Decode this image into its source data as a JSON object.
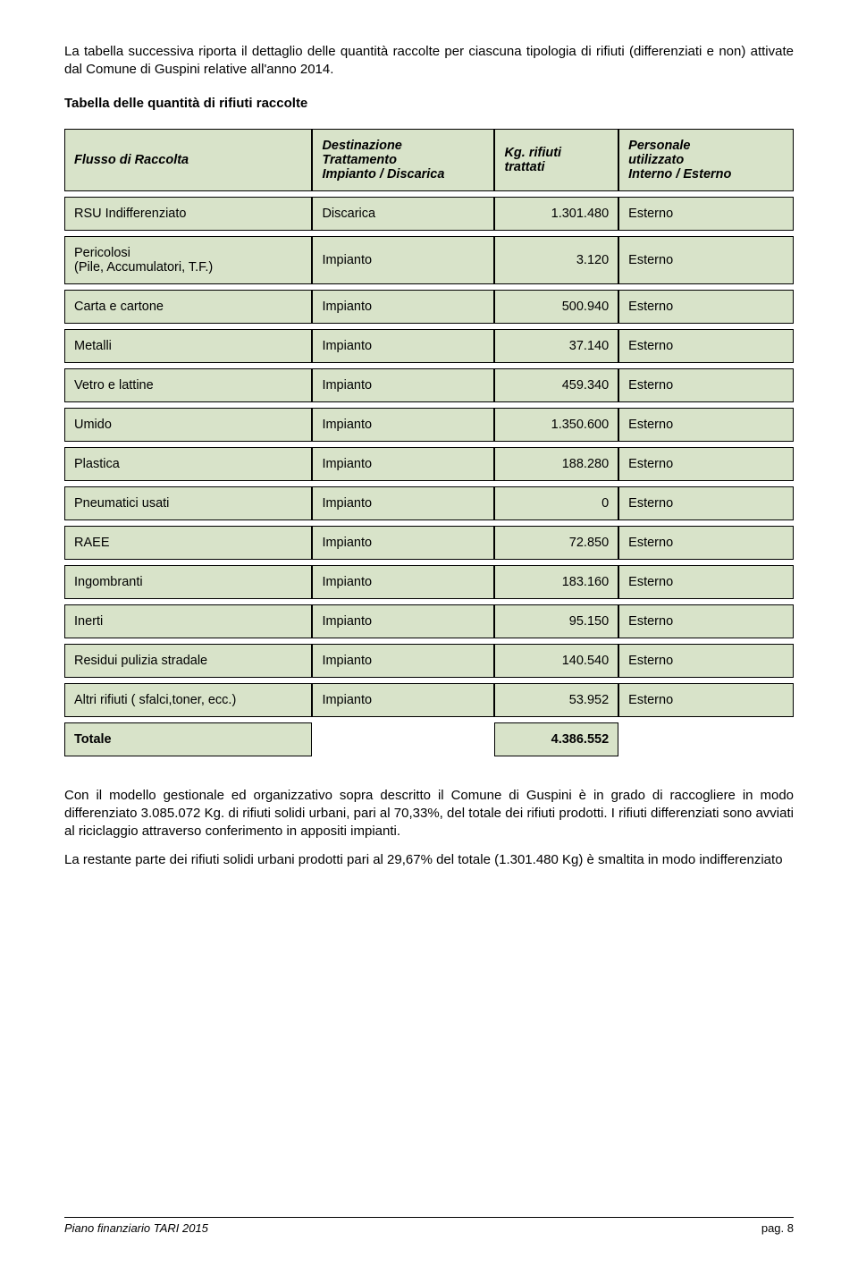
{
  "intro": "La tabella successiva riporta il dettaglio delle quantità raccolte per ciascuna tipologia di rifiuti (differenziati e non) attivate dal Comune di Guspini relative all'anno 2014.",
  "table_title": "Tabella delle quantità di rifiuti raccolte",
  "colors": {
    "cell_bg": "#d8e3c9",
    "border": "#000000",
    "page_bg": "#ffffff",
    "text": "#000000"
  },
  "header": {
    "col1": "Flusso di Raccolta",
    "col2_line1": "Destinazione",
    "col2_line2": "Trattamento",
    "col2_line3": "Impianto / Discarica",
    "col3_line1": "Kg. rifiuti",
    "col3_line2": "trattati",
    "col4_line1": "Personale",
    "col4_line2": "utilizzato",
    "col4_line3": "Interno / Esterno"
  },
  "rows": [
    {
      "flusso": "RSU Indifferenziato",
      "dest": "Discarica",
      "kg": "1.301.480",
      "pers": "Esterno"
    },
    {
      "flusso": "Pericolosi\n(Pile, Accumulatori, T.F.)",
      "dest": "Impianto",
      "kg": "3.120",
      "pers": "Esterno"
    },
    {
      "flusso": "Carta e cartone",
      "dest": "Impianto",
      "kg": "500.940",
      "pers": "Esterno"
    },
    {
      "flusso": "Metalli",
      "dest": "Impianto",
      "kg": "37.140",
      "pers": "Esterno"
    },
    {
      "flusso": "Vetro e lattine",
      "dest": "Impianto",
      "kg": "459.340",
      "pers": "Esterno"
    },
    {
      "flusso": "Umido",
      "dest": "Impianto",
      "kg": "1.350.600",
      "pers": "Esterno"
    },
    {
      "flusso": "Plastica",
      "dest": "Impianto",
      "kg": "188.280",
      "pers": "Esterno"
    },
    {
      "flusso": "Pneumatici usati",
      "dest": "Impianto",
      "kg": "0",
      "pers": "Esterno"
    },
    {
      "flusso": "RAEE",
      "dest": "Impianto",
      "kg": "72.850",
      "pers": "Esterno"
    },
    {
      "flusso": "Ingombranti",
      "dest": "Impianto",
      "kg": "183.160",
      "pers": "Esterno"
    },
    {
      "flusso": "Inerti",
      "dest": "Impianto",
      "kg": "95.150",
      "pers": "Esterno"
    },
    {
      "flusso": "Residui pulizia stradale",
      "dest": "Impianto",
      "kg": "140.540",
      "pers": "Esterno"
    },
    {
      "flusso": "Altri rifiuti ( sfalci,toner, ecc.)",
      "dest": "Impianto",
      "kg": "53.952",
      "pers": "Esterno"
    }
  ],
  "total": {
    "label": "Totale",
    "kg": "4.386.552"
  },
  "para1": "Con il modello gestionale ed organizzativo sopra descritto il Comune di Guspini è in grado di raccogliere in modo differenziato 3.085.072 Kg. di rifiuti solidi urbani, pari al 70,33%, del totale dei rifiuti prodotti. I rifiuti differenziati sono avviati al riciclaggio attraverso conferimento in appositi impianti.",
  "para2": "La restante parte dei rifiuti solidi urbani prodotti pari al 29,67% del totale (1.301.480 Kg) è smaltita in modo indifferenziato",
  "footer_left": "Piano finanziario TARI  2015",
  "footer_right": "pag. 8"
}
